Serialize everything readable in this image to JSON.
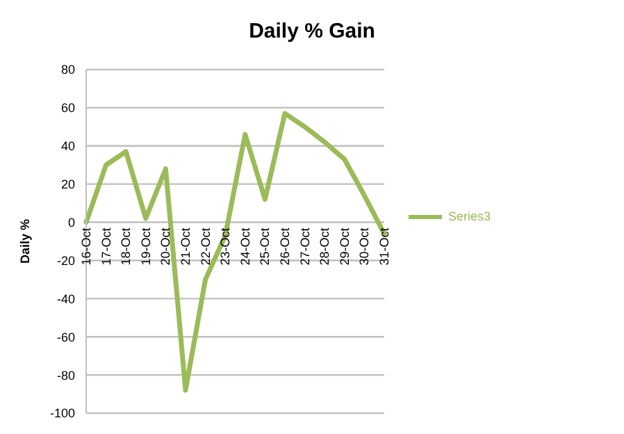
{
  "chart_data": {
    "type": "line",
    "title": "Daily % Gain",
    "ylabel": "Daily %",
    "categories": [
      "16-Oct",
      "17-Oct",
      "18-Oct",
      "19-Oct",
      "20-Oct",
      "21-Oct",
      "22-Oct",
      "23-Oct",
      "24-Oct",
      "25-Oct",
      "26-Oct",
      "27-Oct",
      "28-Oct",
      "29-Oct",
      "30-Oct",
      "31-Oct"
    ],
    "series": [
      {
        "name": "Series3",
        "color": "#9bbb59",
        "values": [
          0,
          30,
          37,
          2,
          28,
          -88,
          -30,
          -7,
          46,
          12,
          57,
          50,
          42,
          33,
          14,
          -6
        ]
      }
    ],
    "ylim": [
      -100,
      80
    ],
    "yticks": [
      -100,
      -80,
      -60,
      -40,
      -20,
      0,
      20,
      40,
      60,
      80
    ],
    "grid": "y",
    "legend": "right",
    "marker": "none",
    "line_style": "solid"
  }
}
